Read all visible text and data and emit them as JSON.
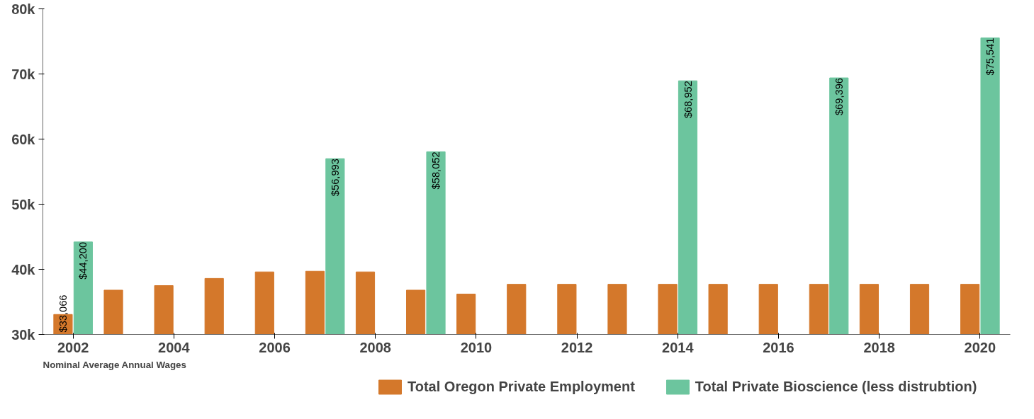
{
  "chart_data": {
    "type": "bar",
    "categories": [
      "2002",
      null,
      "2004",
      null,
      "2006",
      null,
      "2008",
      null,
      "2010",
      null,
      "2012",
      null,
      "2014",
      null,
      "2016",
      null,
      "2018",
      null,
      "2020"
    ],
    "series": [
      {
        "name": "Total Oregon Private Employment",
        "color": "#d4782b",
        "values": [
          33066,
          36800,
          37500,
          38600,
          39600,
          39700,
          39600,
          36800,
          36200,
          37700,
          37700,
          37700,
          37700,
          37700,
          37700,
          37700,
          37700,
          37700,
          37700
        ],
        "value_labels": [
          "$33,066",
          null,
          null,
          null,
          null,
          null,
          null,
          null,
          null,
          null,
          null,
          null,
          null,
          null,
          null,
          null,
          null,
          null,
          null
        ]
      },
      {
        "name": "Total Private Bioscience (less distrubtion)",
        "color": "#6cc59e",
        "values": [
          44200,
          null,
          null,
          null,
          null,
          56993,
          null,
          58052,
          null,
          null,
          null,
          null,
          68952,
          null,
          null,
          69396,
          null,
          null,
          75541
        ],
        "value_labels": [
          "$44,200",
          null,
          null,
          null,
          null,
          "$56,993",
          null,
          "$58,052",
          null,
          null,
          null,
          null,
          "$68,952",
          null,
          null,
          "$69,396",
          null,
          null,
          "$75,541"
        ]
      }
    ],
    "ylim": [
      30000,
      80000
    ],
    "yticks": [
      {
        "value": 30000,
        "label": "30k"
      },
      {
        "value": 40000,
        "label": "40k"
      },
      {
        "value": 50000,
        "label": "50k"
      },
      {
        "value": 60000,
        "label": "60k"
      },
      {
        "value": 70000,
        "label": "70k"
      },
      {
        "value": 80000,
        "label": "80k"
      }
    ],
    "grid": false,
    "legend": "bottom",
    "annotations": [
      "Nominal Average Annual Wages"
    ]
  }
}
